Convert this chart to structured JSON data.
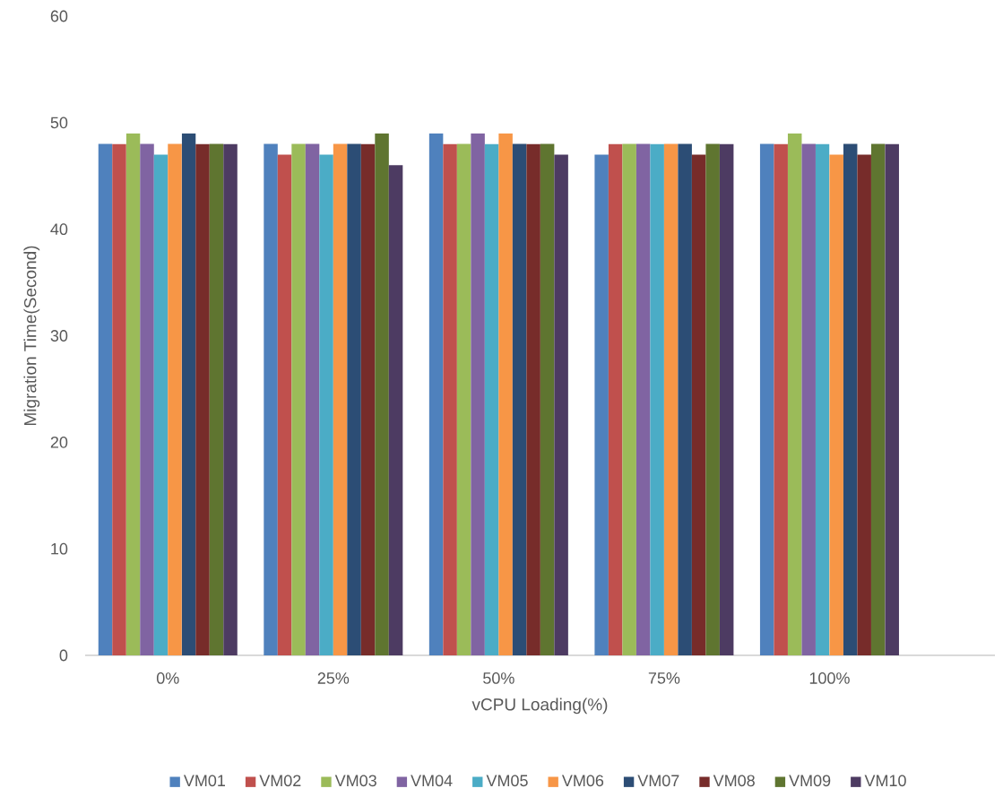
{
  "chart_data": {
    "type": "bar",
    "xlabel": "vCPU Loading(%)",
    "ylabel": "Migration Time(Second)",
    "categories": [
      "0%",
      "25%",
      "50%",
      "75%",
      "100%"
    ],
    "series": [
      {
        "name": "VM01",
        "color": "#4f81bd",
        "values": [
          48,
          48,
          49,
          47,
          48
        ]
      },
      {
        "name": "VM02",
        "color": "#c0504d",
        "values": [
          48,
          47,
          48,
          48,
          48
        ]
      },
      {
        "name": "VM03",
        "color": "#9bbb59",
        "values": [
          49,
          48,
          48,
          48,
          49
        ]
      },
      {
        "name": "VM04",
        "color": "#8064a2",
        "values": [
          48,
          48,
          49,
          48,
          48
        ]
      },
      {
        "name": "VM05",
        "color": "#4bacc6",
        "values": [
          47,
          47,
          48,
          48,
          48
        ]
      },
      {
        "name": "VM06",
        "color": "#f79646",
        "values": [
          48,
          48,
          49,
          48,
          47
        ]
      },
      {
        "name": "VM07",
        "color": "#2c4d75",
        "values": [
          49,
          48,
          48,
          48,
          48
        ]
      },
      {
        "name": "VM08",
        "color": "#772c2a",
        "values": [
          48,
          48,
          48,
          47,
          47
        ]
      },
      {
        "name": "VM09",
        "color": "#5f7530",
        "values": [
          48,
          49,
          48,
          48,
          48
        ]
      },
      {
        "name": "VM10",
        "color": "#4d3b62",
        "values": [
          48,
          46,
          47,
          48,
          48
        ]
      }
    ],
    "ylim": [
      0,
      60
    ],
    "yticks": [
      0,
      10,
      20,
      30,
      40,
      50,
      60
    ],
    "grid": false,
    "legend": "bottom"
  }
}
